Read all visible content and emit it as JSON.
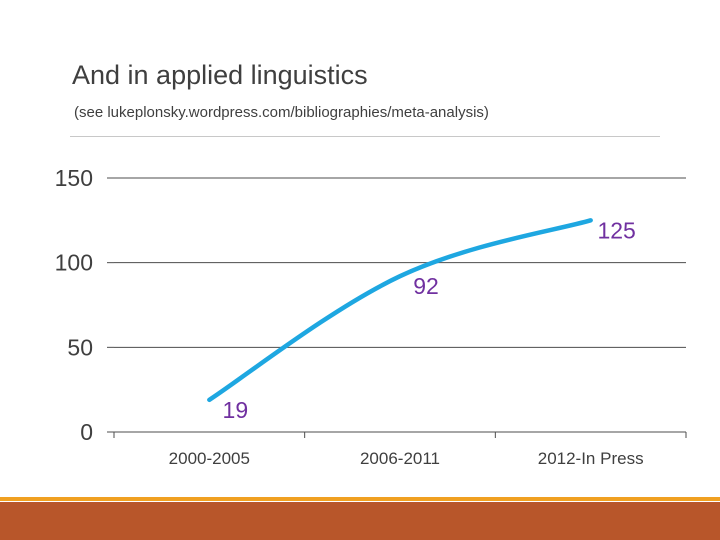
{
  "slide": {
    "title": "And in applied linguistics",
    "subtitle": "(see lukeplonsky.wordpress.com/bibliographies/meta-analysis)"
  },
  "colors": {
    "line": "#1ea7e1",
    "data_label": "#7030a0",
    "axis_text": "#3f3f3f",
    "footer_band": "#b8562a",
    "footer_thin": "#f0a020"
  },
  "chart_data": {
    "type": "line",
    "categories": [
      "2000-2005",
      "2006-2011",
      "2012-In Press"
    ],
    "series": [
      {
        "values": [
          19,
          92,
          125
        ]
      }
    ],
    "y_ticks": [
      0,
      50,
      100,
      150
    ],
    "ylim": [
      0,
      150
    ],
    "grid": true,
    "data_labels": true,
    "smooth": true,
    "legend": "none"
  }
}
